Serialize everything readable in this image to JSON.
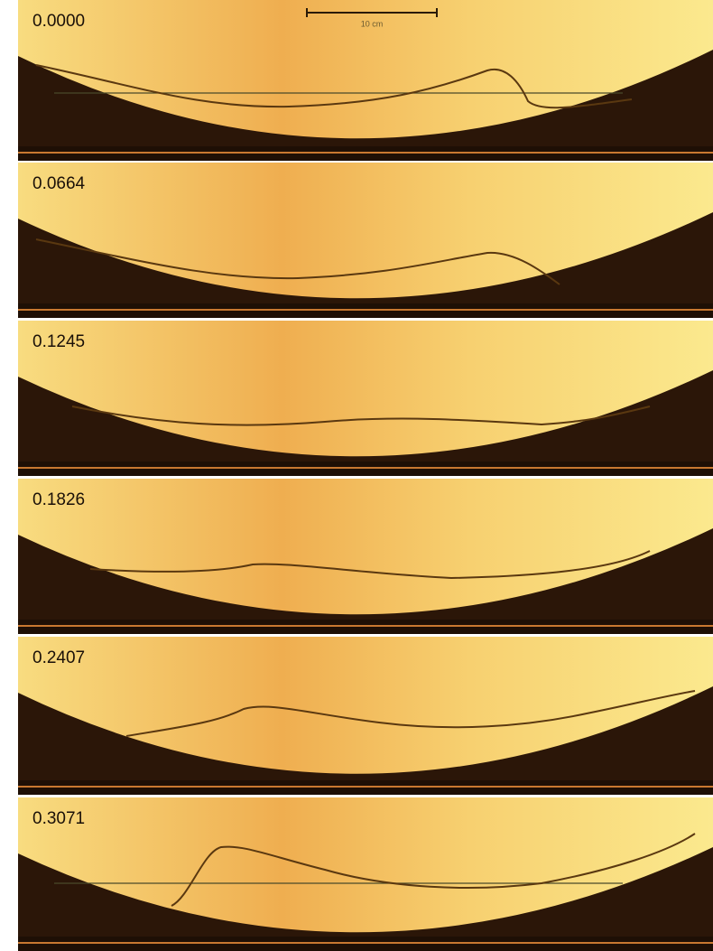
{
  "scale_bar": {
    "label": "10 cm"
  },
  "frames": [
    {
      "time": "0.0000"
    },
    {
      "time": "0.0664"
    },
    {
      "time": "0.1245"
    },
    {
      "time": "0.1826"
    },
    {
      "time": "0.2407"
    },
    {
      "time": "0.3071"
    }
  ]
}
